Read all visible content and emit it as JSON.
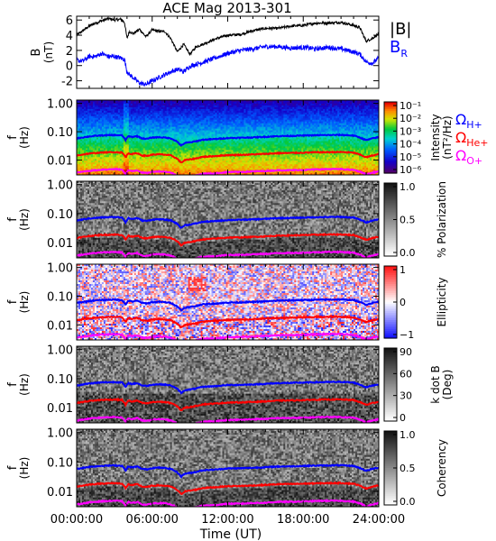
{
  "chart_data": {
    "type": "line",
    "title": "ACE Mag 2013-301",
    "xlabel": "Time (UT)",
    "x_ticks": [
      "00:00:00",
      "06:00:00",
      "12:00:00",
      "18:00:00",
      "24:00:00"
    ],
    "x_range_hours": [
      0,
      24
    ],
    "panels": [
      {
        "kind": "line",
        "ylabel_main": "B",
        "ylabel_unit": "(nT)",
        "ylim": [
          -3,
          6.5
        ],
        "y_ticks": [
          -2,
          0,
          2,
          4,
          6
        ],
        "legend": [
          {
            "label": "|B|",
            "color": "#000000"
          },
          {
            "label": "B",
            "sub": "R",
            "color": "#0000ff"
          }
        ],
        "series": [
          {
            "name": "|B|",
            "color": "#000000",
            "x": [
              0,
              0.5,
              1,
              1.5,
              2,
              2.5,
              3,
              3.5,
              3.8,
              4.0,
              4.2,
              4.5,
              5,
              5.5,
              6,
              6.5,
              7,
              7.5,
              8,
              8.5,
              9,
              9.5,
              10,
              11,
              12,
              13,
              14,
              15,
              16,
              17,
              18,
              19,
              20,
              21,
              22,
              22.5,
              23,
              23.5,
              24
            ],
            "y": [
              4.0,
              4.6,
              5.2,
              5.6,
              5.9,
              6.2,
              6.0,
              6.1,
              5.7,
              3.6,
              4.5,
              4.2,
              4.8,
              3.8,
              4.7,
              4.5,
              4.5,
              3.5,
              1.8,
              2.8,
              1.5,
              2.5,
              2.8,
              3.5,
              4.0,
              4.1,
              4.6,
              4.9,
              4.9,
              5.2,
              5.3,
              5.6,
              5.6,
              5.7,
              5.3,
              5.0,
              3.2,
              3.6,
              4.2
            ]
          },
          {
            "name": "B_R",
            "color": "#0000ff",
            "x": [
              0,
              0.5,
              1,
              1.5,
              2,
              2.5,
              3,
              3.5,
              3.8,
              4.0,
              4.2,
              4.5,
              5,
              5.5,
              6,
              6.5,
              7,
              7.5,
              8,
              8.5,
              9,
              9.5,
              10,
              11,
              12,
              13,
              14,
              15,
              16,
              17,
              18,
              19,
              20,
              21,
              22,
              22.5,
              23,
              23.5,
              24
            ],
            "y": [
              0.7,
              0.6,
              1.2,
              1.2,
              1.6,
              1.2,
              1.2,
              1.0,
              0.8,
              -0.8,
              -1.2,
              -1.6,
              -2.3,
              -2.5,
              -2.0,
              -1.6,
              -1.2,
              -0.8,
              -0.5,
              -0.8,
              -0.1,
              0.2,
              0.4,
              1.0,
              1.6,
              2.0,
              2.2,
              2.5,
              2.5,
              2.3,
              2.4,
              2.2,
              2.4,
              2.2,
              1.8,
              1.5,
              0.5,
              0.3,
              1.0
            ]
          }
        ]
      },
      {
        "kind": "spectrogram",
        "colormap": "rainbow",
        "ylabel_main": "f",
        "ylabel_unit": "(Hz)",
        "y_ticks": [
          "1.00",
          "0.10",
          "0.01"
        ],
        "colorbar_label": "Intensity",
        "colorbar_unit": "(nT²/Hz)",
        "colorbar_ticks": [
          "10⁻¹",
          "10⁻²",
          "10⁻³",
          "10⁻⁴",
          "10⁻⁵",
          "10⁻⁶"
        ],
        "legend": [
          {
            "label": "Ω",
            "sub": "H+",
            "color": "#0000ff"
          },
          {
            "label": "Ω",
            "sub": "He+",
            "color": "#ff0000"
          },
          {
            "label": "Ω",
            "sub": "O+",
            "color": "#ff00ff"
          }
        ]
      },
      {
        "kind": "spectrogram",
        "colormap": "gray",
        "ylabel_main": "f",
        "ylabel_unit": "(Hz)",
        "y_ticks": [
          "1.00",
          "0.10",
          "0.01"
        ],
        "colorbar_label": "% Polarization",
        "colorbar_ticks": [
          "1.0",
          "0.5",
          "0.0"
        ]
      },
      {
        "kind": "spectrogram",
        "colormap": "bwr",
        "ylabel_main": "f",
        "ylabel_unit": "(Hz)",
        "y_ticks": [
          "1.00",
          "0.10",
          "0.01"
        ],
        "colorbar_label": "Ellipticity",
        "colorbar_ticks": [
          "1",
          "0",
          "−1"
        ]
      },
      {
        "kind": "spectrogram",
        "colormap": "gray",
        "ylabel_main": "f",
        "ylabel_unit": "(Hz)",
        "y_ticks": [
          "1.00",
          "0.10",
          "0.01"
        ],
        "colorbar_label": "k dot B",
        "colorbar_unit": "(Deg)",
        "colorbar_ticks": [
          "90",
          "60",
          "30",
          "0"
        ]
      },
      {
        "kind": "spectrogram",
        "colormap": "gray",
        "ylabel_main": "f",
        "ylabel_unit": "(Hz)",
        "y_ticks": [
          "1.00",
          "0.10",
          "0.01"
        ],
        "colorbar_label": "Coherency",
        "colorbar_ticks": [
          "1.0",
          "0.5",
          "0.0"
        ]
      }
    ],
    "gyrofrequency_curves_hz": {
      "x": [
        0,
        1,
        2,
        3,
        3.6,
        3.9,
        4.1,
        4.4,
        4.8,
        5.2,
        5.6,
        6.0,
        6.5,
        7,
        7.5,
        8,
        8.3,
        8.6,
        9,
        9.5,
        10,
        11,
        12,
        13,
        14,
        15,
        16,
        17,
        18,
        19,
        20,
        21,
        22,
        22.5,
        23,
        23.5,
        24
      ],
      "H+": [
        0.058,
        0.068,
        0.074,
        0.076,
        0.074,
        0.05,
        0.07,
        0.065,
        0.07,
        0.058,
        0.056,
        0.062,
        0.064,
        0.062,
        0.058,
        0.044,
        0.032,
        0.04,
        0.042,
        0.046,
        0.052,
        0.055,
        0.06,
        0.061,
        0.063,
        0.066,
        0.07,
        0.071,
        0.073,
        0.075,
        0.076,
        0.077,
        0.073,
        0.062,
        0.05,
        0.058,
        0.064
      ],
      "He+": [
        0.0145,
        0.017,
        0.0185,
        0.019,
        0.0185,
        0.0125,
        0.0175,
        0.0162,
        0.0175,
        0.0145,
        0.014,
        0.0155,
        0.016,
        0.0155,
        0.0145,
        0.011,
        0.008,
        0.01,
        0.0105,
        0.0115,
        0.013,
        0.0138,
        0.015,
        0.0152,
        0.0158,
        0.0165,
        0.0175,
        0.0178,
        0.0182,
        0.0188,
        0.019,
        0.0192,
        0.0182,
        0.0155,
        0.0125,
        0.0145,
        0.016
      ],
      "O+": [
        0.0036,
        0.0042,
        0.0046,
        0.0048,
        0.0046,
        0.0031,
        0.0044,
        0.004,
        0.0044,
        0.0036,
        0.0035,
        0.0039,
        0.004,
        0.0039,
        0.0036,
        0.0028,
        0.002,
        0.0025,
        0.0026,
        0.0029,
        0.0033,
        0.0034,
        0.0038,
        0.0038,
        0.004,
        0.0041,
        0.0044,
        0.0044,
        0.0045,
        0.0047,
        0.0048,
        0.0048,
        0.0045,
        0.0039,
        0.0031,
        0.0036,
        0.004
      ]
    },
    "f_range_hz": [
      0.003,
      1.3
    ],
    "colors": {
      "H+": "#0000ff",
      "He+": "#ff0000",
      "O+": "#ff00ff",
      "B_total": "#000000",
      "B_R": "#0000ff"
    }
  }
}
